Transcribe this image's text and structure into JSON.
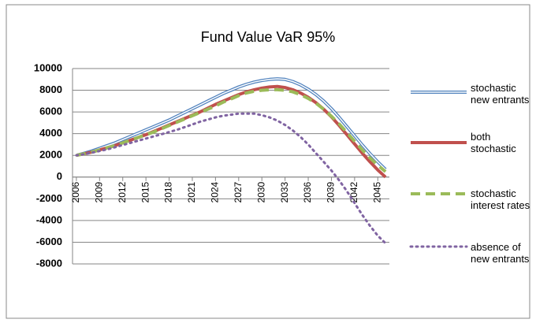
{
  "chart_data": {
    "type": "line",
    "title": "Fund Value VaR 95%",
    "categories": [
      "2006",
      null,
      null,
      "2009",
      null,
      null,
      "2012",
      null,
      null,
      "2015",
      null,
      null,
      "2018",
      null,
      null,
      "2021",
      null,
      null,
      "2024",
      null,
      null,
      "2027",
      null,
      null,
      "2030",
      null,
      null,
      "2033",
      null,
      null,
      "2036",
      null,
      null,
      "2039",
      null,
      null,
      "2042",
      null,
      null,
      "2045",
      null
    ],
    "series": [
      {
        "name": "stochastic new entrants",
        "color": "#4f81bd",
        "style": "double",
        "values": [
          2000,
          2200,
          2400,
          2650,
          2900,
          3150,
          3450,
          3750,
          4050,
          4350,
          4650,
          4950,
          5250,
          5600,
          5950,
          6300,
          6650,
          7000,
          7350,
          7700,
          8000,
          8300,
          8550,
          8750,
          8900,
          9000,
          9050,
          9000,
          8800,
          8500,
          8100,
          7600,
          7000,
          6300,
          5500,
          4650,
          3800,
          2950,
          2150,
          1400,
          700
        ]
      },
      {
        "name": "both stochastic",
        "color": "#c0504d",
        "style": "solid",
        "values": [
          2000,
          2150,
          2300,
          2500,
          2700,
          2900,
          3150,
          3400,
          3650,
          3900,
          4200,
          4500,
          4800,
          5100,
          5400,
          5700,
          6000,
          6350,
          6700,
          7000,
          7300,
          7600,
          7850,
          8050,
          8200,
          8300,
          8350,
          8250,
          8050,
          7750,
          7350,
          6850,
          6250,
          5550,
          4750,
          3900,
          3050,
          2200,
          1400,
          650,
          0
        ]
      },
      {
        "name": "stochastic interest rates",
        "color": "#9bbb59",
        "style": "dashed",
        "values": [
          2000,
          2150,
          2300,
          2500,
          2700,
          2900,
          3150,
          3400,
          3650,
          3900,
          4150,
          4450,
          4750,
          5050,
          5350,
          5650,
          5950,
          6250,
          6550,
          6900,
          7200,
          7500,
          7750,
          7900,
          8000,
          8050,
          8050,
          8000,
          7850,
          7600,
          7250,
          6800,
          6250,
          5600,
          4900,
          4100,
          3300,
          2500,
          1750,
          1100,
          500
        ]
      },
      {
        "name": "absence of new entrants",
        "color": "#8064a2",
        "style": "dotted",
        "values": [
          2000,
          2100,
          2250,
          2400,
          2550,
          2750,
          2950,
          3150,
          3350,
          3550,
          3750,
          3950,
          4150,
          4350,
          4600,
          4850,
          5100,
          5300,
          5500,
          5650,
          5750,
          5850,
          5850,
          5850,
          5700,
          5500,
          5200,
          4800,
          4300,
          3700,
          3000,
          2200,
          1400,
          600,
          -300,
          -1300,
          -2400,
          -3500,
          -4500,
          -5400,
          -6100
        ]
      }
    ],
    "ylim": [
      -8000,
      10000
    ],
    "yticks": [
      -8000,
      -6000,
      -4000,
      -2000,
      0,
      2000,
      4000,
      6000,
      8000,
      10000
    ],
    "grid": true,
    "legend": "right"
  }
}
